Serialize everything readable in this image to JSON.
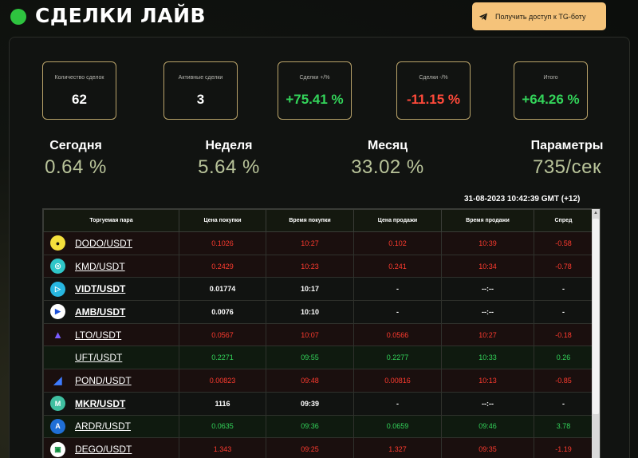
{
  "header": {
    "title": "СДЕЛКИ ЛАЙВ",
    "tg_button": "Получить доступ к TG-боту",
    "live_color": "#2ec43f"
  },
  "stats": [
    {
      "label": "Количество сделок",
      "value": "62",
      "color": "#ffffff"
    },
    {
      "label": "Активные сделки",
      "value": "3",
      "color": "#ffffff"
    },
    {
      "label": "Сделки +/%",
      "value": "+75.41 %",
      "color": "#33d45a"
    },
    {
      "label": "Сделки -/%",
      "value": "-11.15 %",
      "color": "#ff4a3a"
    },
    {
      "label": "Итого",
      "value": "+64.26 %",
      "color": "#33d45a"
    }
  ],
  "periods": [
    {
      "label": "Сегодня",
      "value": "0.64 %"
    },
    {
      "label": "Неделя",
      "value": "5.64 %"
    },
    {
      "label": "Месяц",
      "value": "33.02 %"
    },
    {
      "label": "Параметры",
      "value": "735/сек"
    }
  ],
  "timestamp": "31-08-2023 10:42:39 GMT (+12)",
  "table": {
    "headers": [
      "Торгуемая пара",
      "Цена покупки",
      "Время покупки",
      "Цена продажи",
      "Время продажи",
      "Спред"
    ],
    "rows": [
      {
        "pair": "DODO/USDT",
        "buy_price": "0.1026",
        "buy_time": "10:27",
        "sell_price": "0.102",
        "sell_time": "10:39",
        "spread": "-0.58",
        "status": "red",
        "icon": "dodo-icon",
        "icon_bg": "#f4e03c",
        "icon_fg": "#111"
      },
      {
        "pair": "KMD/USDT",
        "buy_price": "0.2429",
        "buy_time": "10:23",
        "sell_price": "0.241",
        "sell_time": "10:34",
        "spread": "-0.78",
        "status": "red",
        "icon": "kmd-icon",
        "icon_bg": "#2fc6c8",
        "icon_fg": "#fff"
      },
      {
        "pair": "VIDT/USDT",
        "buy_price": "0.01774",
        "buy_time": "10:17",
        "sell_price": "-",
        "sell_time": "--:--",
        "spread": "-",
        "status": "neutral",
        "icon": "vidt-icon",
        "icon_bg": "#27b6e0",
        "icon_fg": "#fff"
      },
      {
        "pair": "AMB/USDT",
        "buy_price": "0.0076",
        "buy_time": "10:10",
        "sell_price": "-",
        "sell_time": "--:--",
        "spread": "-",
        "status": "neutral",
        "icon": "amb-icon",
        "icon_bg": "#ffffff",
        "icon_fg": "#1b4fd8"
      },
      {
        "pair": "LTO/USDT",
        "buy_price": "0.0567",
        "buy_time": "10:07",
        "sell_price": "0.0566",
        "sell_time": "10:27",
        "spread": "-0.18",
        "status": "red",
        "icon": "lto-icon",
        "icon_bg": "transparent",
        "icon_fg": "#7b5cff"
      },
      {
        "pair": "UFT/USDT",
        "buy_price": "0.2271",
        "buy_time": "09:55",
        "sell_price": "0.2277",
        "sell_time": "10:33",
        "spread": "0.26",
        "status": "green",
        "icon": "",
        "icon_bg": "transparent",
        "icon_fg": "#fff"
      },
      {
        "pair": "POND/USDT",
        "buy_price": "0.00823",
        "buy_time": "09:48",
        "sell_price": "0.00816",
        "sell_time": "10:13",
        "spread": "-0.85",
        "status": "red",
        "icon": "pond-icon",
        "icon_bg": "transparent",
        "icon_fg": "#3d7bff"
      },
      {
        "pair": "MKR/USDT",
        "buy_price": "1116",
        "buy_time": "09:39",
        "sell_price": "-",
        "sell_time": "--:--",
        "spread": "-",
        "status": "neutral",
        "icon": "mkr-icon",
        "icon_bg": "#3fbfa0",
        "icon_fg": "#fff"
      },
      {
        "pair": "ARDR/USDT",
        "buy_price": "0.0635",
        "buy_time": "09:36",
        "sell_price": "0.0659",
        "sell_time": "09:46",
        "spread": "3.78",
        "status": "green",
        "icon": "ardr-icon",
        "icon_bg": "#1f6fd6",
        "icon_fg": "#fff"
      },
      {
        "pair": "DEGO/USDT",
        "buy_price": "1.343",
        "buy_time": "09:25",
        "sell_price": "1.327",
        "sell_time": "09:35",
        "spread": "-1.19",
        "status": "red",
        "icon": "dego-icon",
        "icon_bg": "#ffffff",
        "icon_fg": "#0a8a3a"
      }
    ]
  }
}
